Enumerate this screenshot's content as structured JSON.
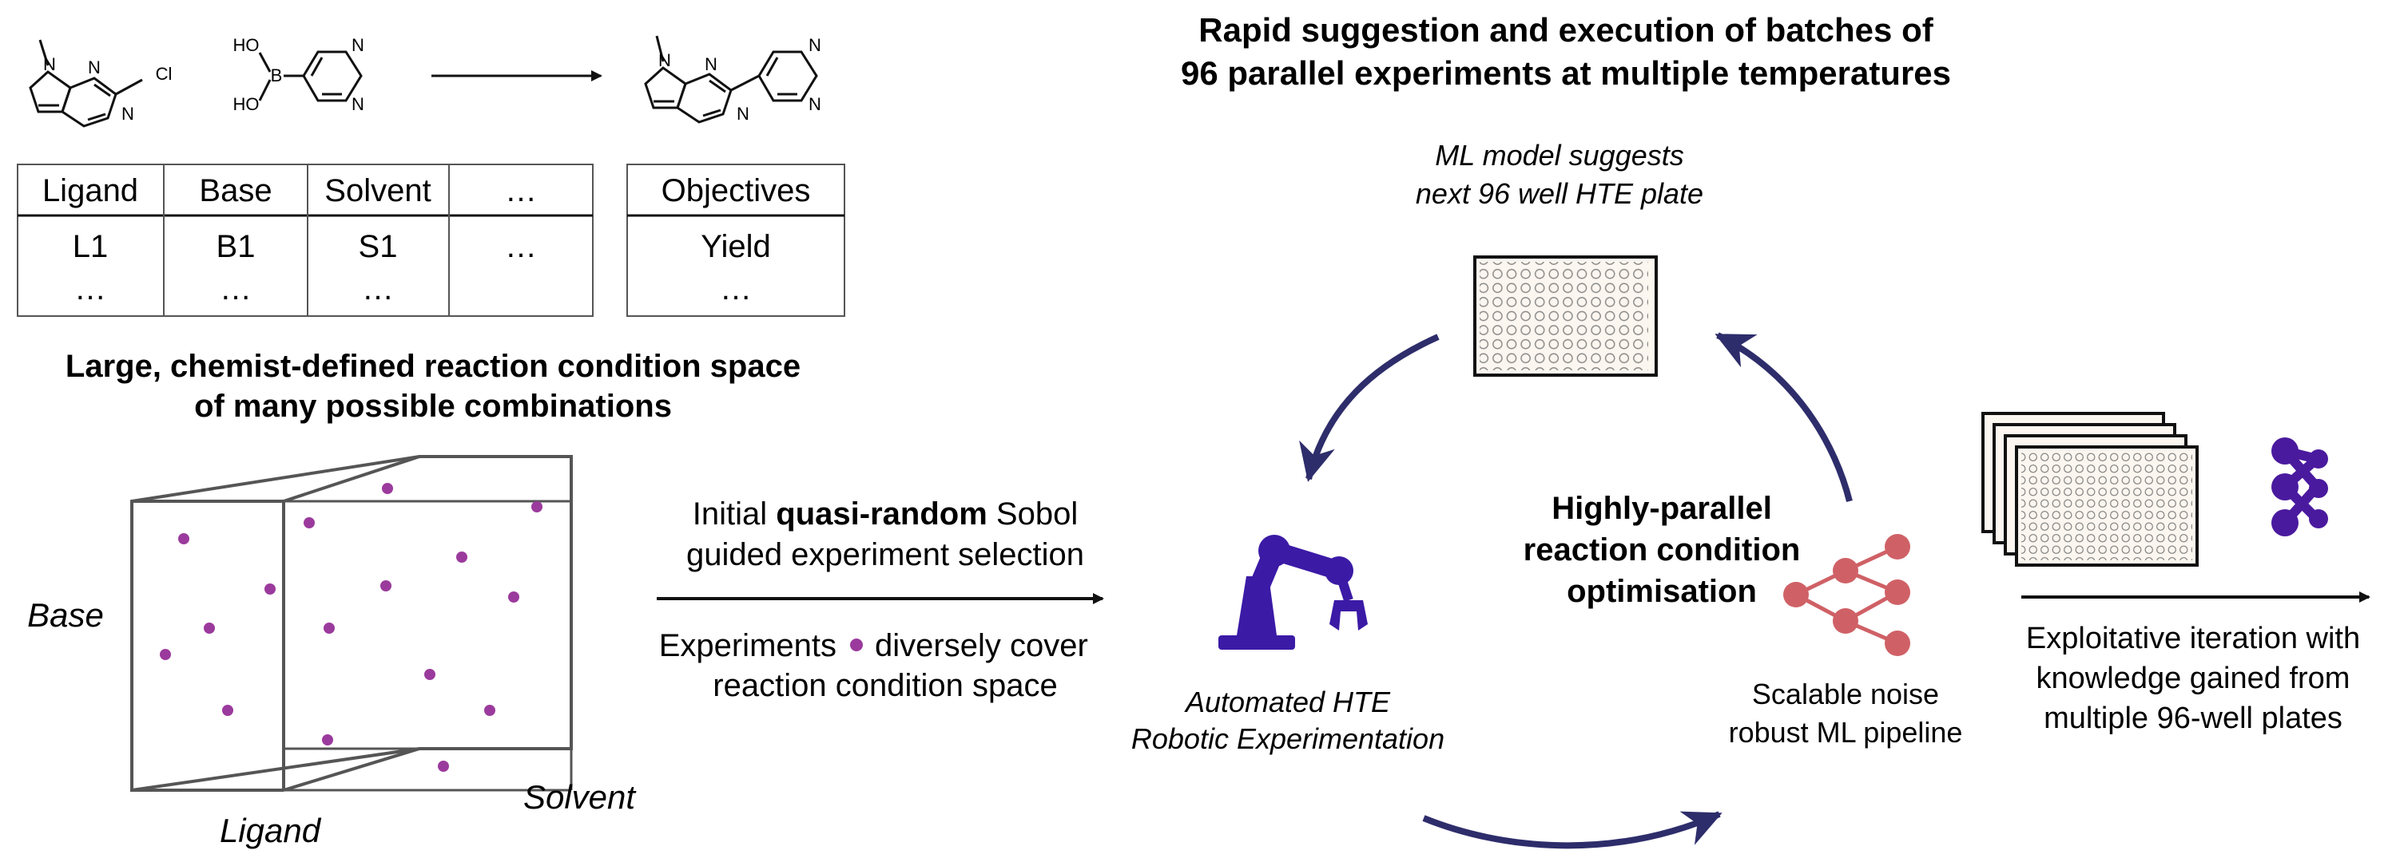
{
  "reaction": {
    "reactant1_atoms": {
      "n_methyl": "N",
      "n_ring_top": "N",
      "n_ring_bottom": "N",
      "cl": "Cl"
    },
    "reactant2_atoms": {
      "ho_top": "HO",
      "ho_bottom": "HO",
      "b": "B",
      "n_top": "N",
      "n_bottom": "N"
    },
    "product_atoms": {
      "n_methyl": "N",
      "n_ring1": "N",
      "n_ring2": "N",
      "n_pyr_top": "N",
      "n_pyr_bottom": "N"
    }
  },
  "conditions_table": {
    "headers": [
      "Ligand",
      "Base",
      "Solvent",
      "…"
    ],
    "row1": [
      "L1",
      "B1",
      "S1",
      "…"
    ],
    "row2": [
      "…",
      "…",
      "…",
      ""
    ]
  },
  "objectives_table": {
    "header": "Objectives",
    "row1": "Yield",
    "row2": "…"
  },
  "space_title": {
    "line1": "Large, chemist-defined reaction condition space",
    "line2": "of many possible combinations"
  },
  "cube_axes": {
    "base": "Base",
    "ligand": "Ligand",
    "solvent": "Solvent"
  },
  "sobol": {
    "line1_pre": "Initial ",
    "line1_bold": "quasi-random",
    "line1_post": " Sobol",
    "line2": "guided experiment selection",
    "line3_pre": "Experiments",
    "line3_post": "diversely cover",
    "line4": "reaction condition space"
  },
  "batch_title": {
    "line1": "Rapid suggestion and execution of batches of",
    "line2": "96 parallel experiments at multiple temperatures"
  },
  "ml_suggest": {
    "line1": "ML model suggests",
    "line2": "next 96 well HTE plate"
  },
  "center": {
    "line1": "Highly-parallel",
    "line2": "reaction condition",
    "line3": "optimisation"
  },
  "robot_label": {
    "line1": "Automated HTE",
    "line2": "Robotic Experimentation"
  },
  "ml_label": {
    "line1": "Scalable noise",
    "line2": "robust ML pipeline"
  },
  "exploit": {
    "line1": "Exploitative iteration with",
    "line2": "knowledge gained from",
    "line3": "multiple 96-well plates"
  },
  "colors": {
    "navy": "#2e2d6b",
    "purple": "#9b3a9d",
    "robot": "#3b1aa6",
    "ml": "#cf6166",
    "network": "#4a1a9e",
    "cube": "#555555"
  },
  "icons": [
    "robot-arm-icon",
    "neural-network-icon",
    "well-plate-icon",
    "plate-stack-icon",
    "network-icon"
  ]
}
